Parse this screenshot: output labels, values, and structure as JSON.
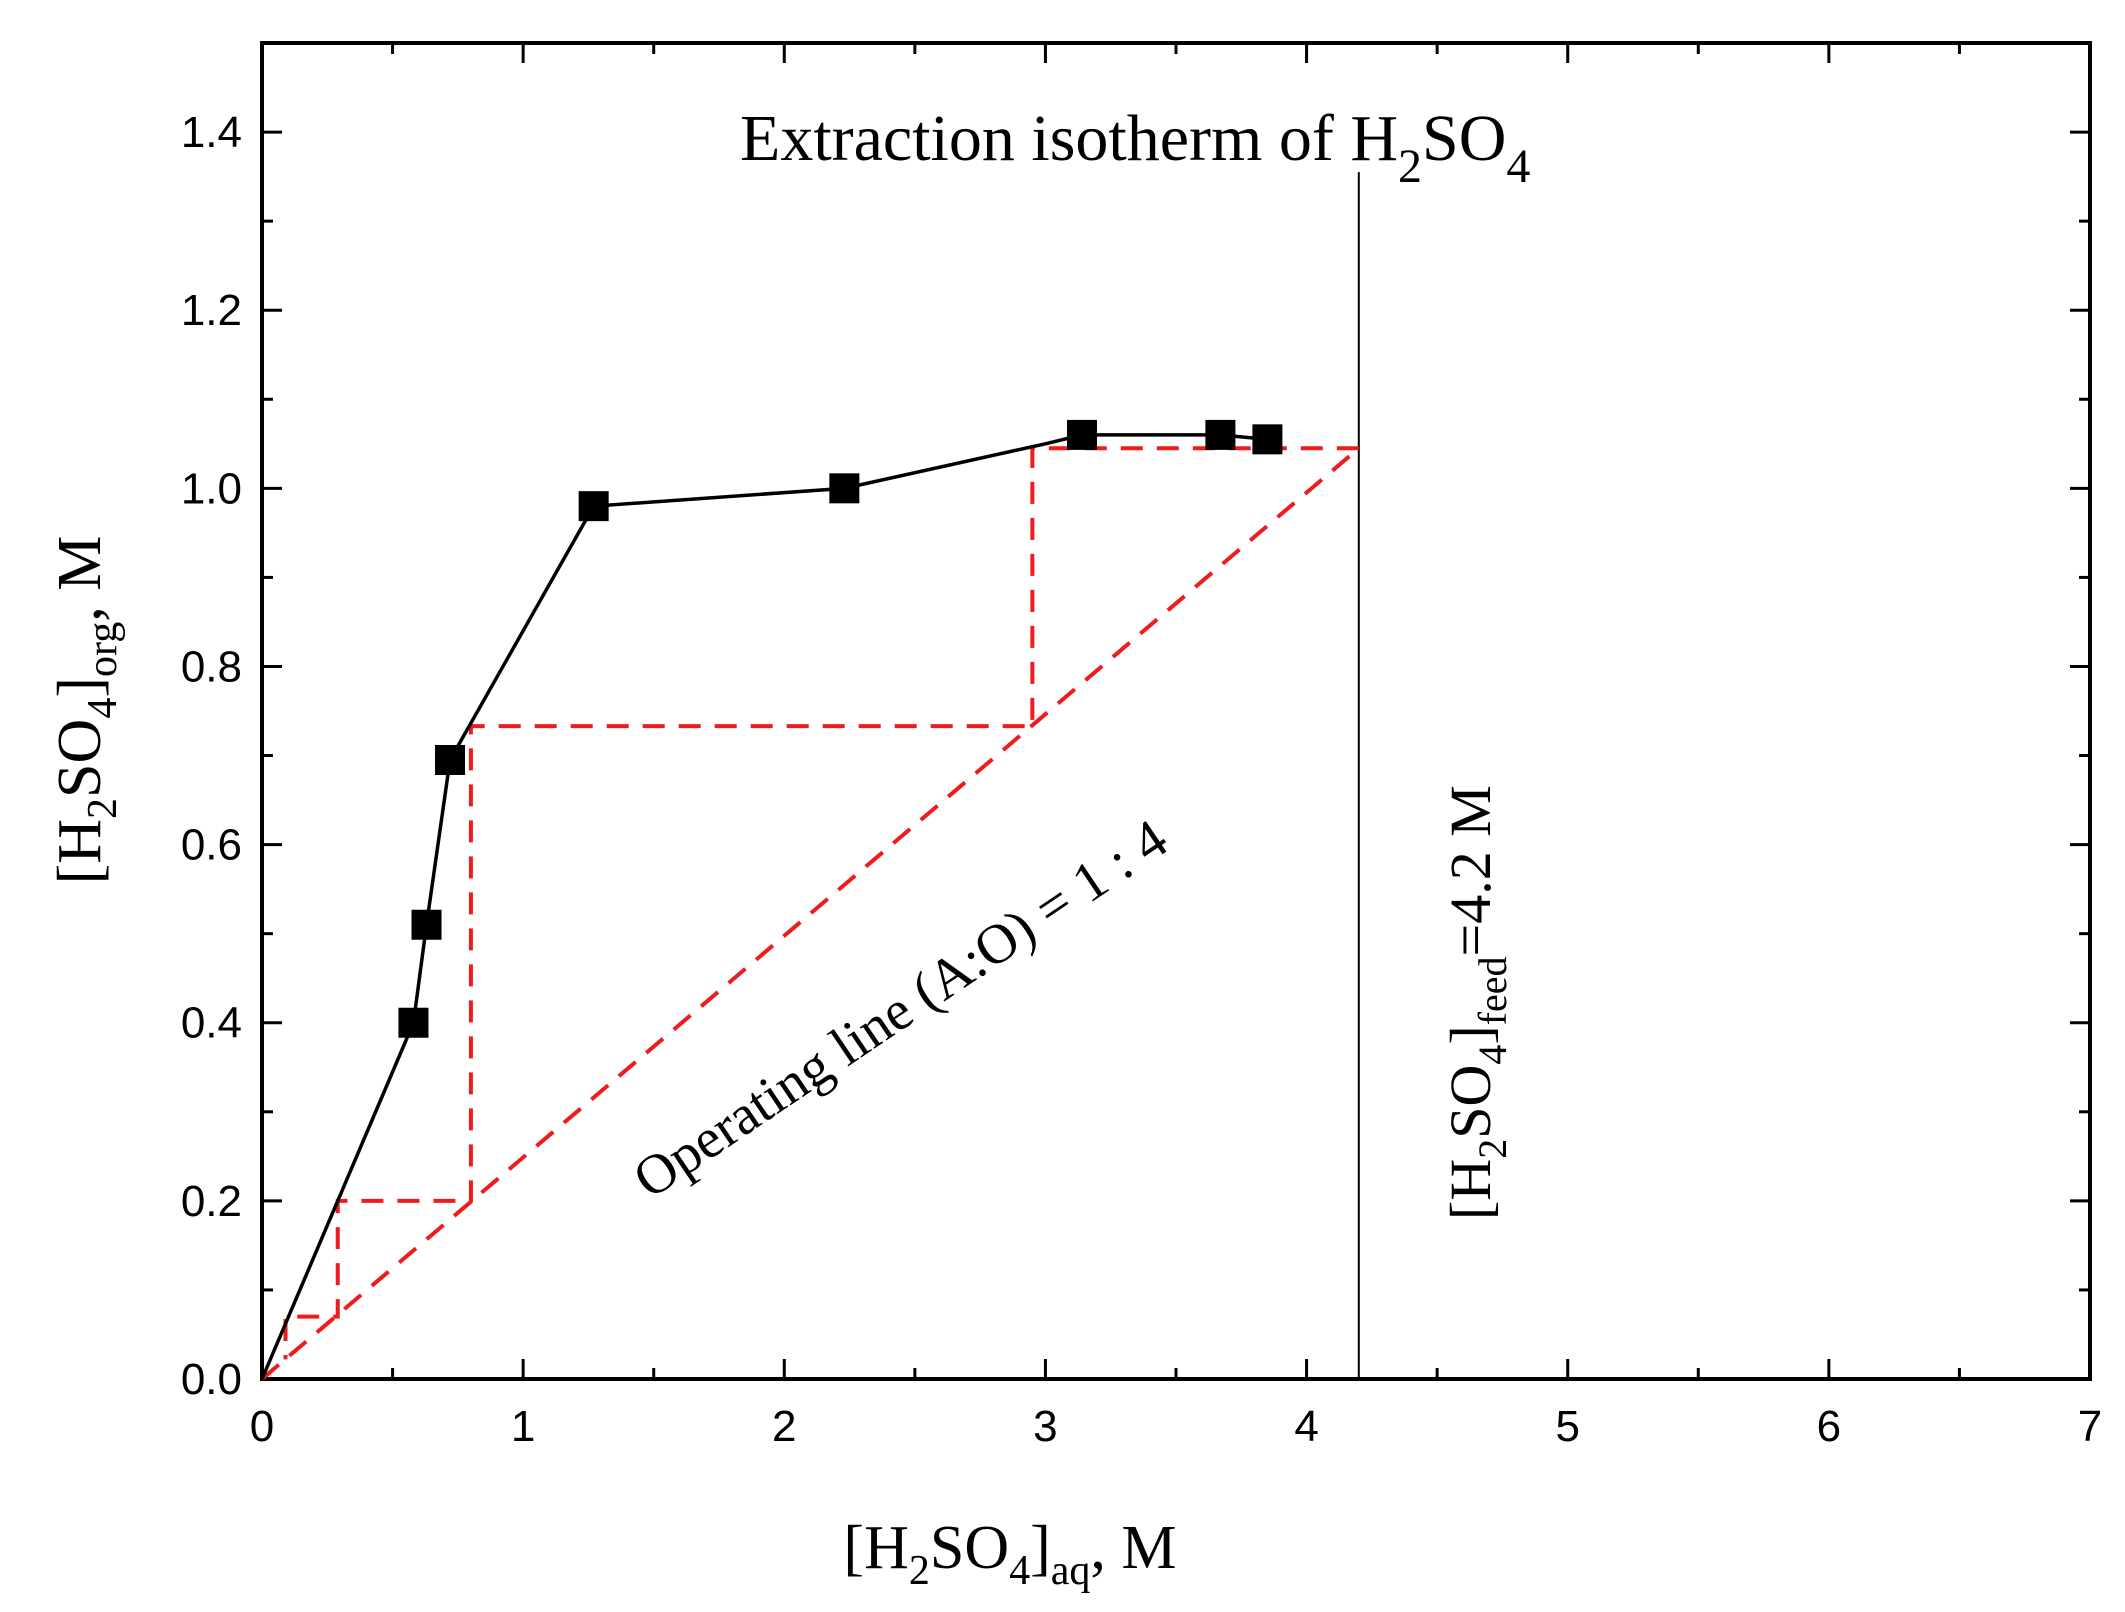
{
  "chart_data": {
    "type": "scatter",
    "title": {
      "prefix": "Extraction isotherm of H",
      "sub1": "2",
      "mid": "SO",
      "sub2": "4"
    },
    "xlabel": {
      "prefix": "[H",
      "sub1": "2",
      "mid": "SO",
      "sub2": "4",
      "close": "]",
      "sub3": "aq",
      "suffix": ", M"
    },
    "ylabel": {
      "prefix": "[H",
      "sub1": "2",
      "mid": "SO",
      "sub2": "4",
      "close": "]",
      "sub3": "org",
      "suffix": ", M"
    },
    "xlim": [
      0,
      7
    ],
    "ylim": [
      0,
      1.5
    ],
    "xticks": [
      "0",
      "1",
      "2",
      "3",
      "4",
      "5",
      "6",
      "7"
    ],
    "yticks": [
      "0.0",
      "0.2",
      "0.4",
      "0.6",
      "0.8",
      "1.0",
      "1.2",
      "1.4"
    ],
    "isotherm": {
      "name": "Extraction isotherm",
      "color": "#000000",
      "points": [
        [
          0.58,
          0.4
        ],
        [
          0.63,
          0.51
        ],
        [
          0.72,
          0.695
        ],
        [
          1.27,
          0.98
        ],
        [
          2.23,
          1.0
        ],
        [
          3.14,
          1.06
        ],
        [
          3.67,
          1.06
        ],
        [
          3.85,
          1.055
        ]
      ],
      "curve": [
        [
          0.0,
          0.0
        ],
        [
          0.58,
          0.4
        ],
        [
          0.63,
          0.51
        ],
        [
          0.72,
          0.695
        ],
        [
          1.27,
          0.98
        ],
        [
          2.23,
          1.0
        ],
        [
          3.0,
          1.05
        ],
        [
          3.14,
          1.06
        ],
        [
          3.67,
          1.06
        ],
        [
          3.85,
          1.055
        ]
      ]
    },
    "operating_line": {
      "color": "#ee1c1c",
      "from": [
        0.0,
        0.0
      ],
      "to": [
        4.2,
        1.045
      ],
      "label": "Operating line (A:O) = 1 : 4"
    },
    "stages": {
      "color": "#ee1c1c",
      "path": [
        [
          4.2,
          1.045
        ],
        [
          2.95,
          1.045
        ],
        [
          2.95,
          0.733
        ],
        [
          0.8,
          0.733
        ],
        [
          0.8,
          0.2
        ],
        [
          0.29,
          0.2
        ],
        [
          0.29,
          0.07
        ],
        [
          0.09,
          0.07
        ],
        [
          0.09,
          0.022
        ]
      ]
    },
    "feed_line": {
      "x": 4.2,
      "y_range": [
        0.0,
        1.355
      ],
      "color": "#000000",
      "label": {
        "prefix": "[H",
        "sub1": "2",
        "mid": "SO",
        "sub2": "4",
        "close": "]",
        "sub3": "feed",
        "suffix": "=4.2 M"
      }
    }
  }
}
